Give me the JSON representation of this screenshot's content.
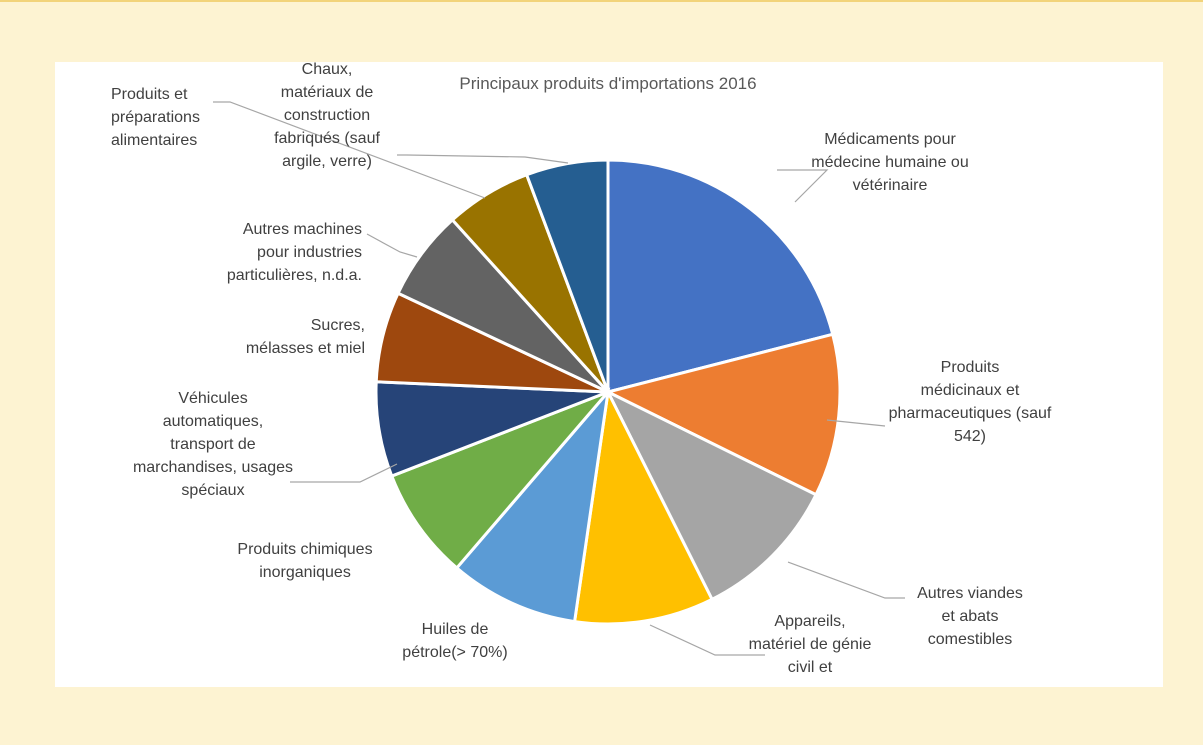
{
  "chart_data": {
    "type": "pie",
    "title": "Principaux produits d'importations 2016",
    "start_angle_deg": 0,
    "direction": "clockwise",
    "slices": [
      {
        "label": "Médicaments pour médecine humaine ou vétérinaire",
        "value": 21.0,
        "color": "#4472c4"
      },
      {
        "label": "Produits médicinaux et pharmaceutiques (sauf 542)",
        "value": 11.3,
        "color": "#ed7d31"
      },
      {
        "label": "Autres viandes et abats comestibles",
        "value": 10.3,
        "color": "#a5a5a5"
      },
      {
        "label": "Appareils, matériel de génie civil et",
        "value": 9.7,
        "color": "#ffc000"
      },
      {
        "label": "Huiles de pétrole(> 70%)",
        "value": 9.0,
        "color": "#5b9bd5"
      },
      {
        "label": "Produits chimiques inorganiques",
        "value": 7.8,
        "color": "#70ad47"
      },
      {
        "label": "Véhicules automatiques, transport de marchandises, usages spéciaux",
        "value": 6.6,
        "color": "#264478"
      },
      {
        "label": "Sucres, mélasses et miel",
        "value": 6.3,
        "color": "#9e480e"
      },
      {
        "label": "Autres machines pour industries particulières, n.d.a.",
        "value": 6.3,
        "color": "#636363"
      },
      {
        "label": "Produits et préparations alimentaires",
        "value": 6.0,
        "color": "#997300"
      },
      {
        "label": "Chaux, matériaux de construction fabriqués (sauf argile, verre)",
        "value": 5.7,
        "color": "#255e91"
      }
    ]
  },
  "labels_text": [
    [
      "Médicaments pour",
      "médecine humaine ou",
      "vétérinaire"
    ],
    [
      "Produits",
      "médicinaux et",
      "pharmaceutiques (sauf",
      "542)"
    ],
    [
      "Autres viandes",
      "et abats",
      "comestibles"
    ],
    [
      "Appareils,",
      "matériel de génie",
      "civil et"
    ],
    [
      "Huiles de",
      "pétrole(> 70%)"
    ],
    [
      "Produits chimiques",
      "inorganiques"
    ],
    [
      "Véhicules",
      "automatiques,",
      "transport de",
      "marchandises, usages",
      "spéciaux"
    ],
    [
      "Sucres,",
      "mélasses et miel"
    ],
    [
      "Autres machines",
      "pour industries",
      "particulières, n.d.a."
    ],
    [
      "Produits et",
      "préparations",
      "alimentaires"
    ],
    [
      "Chaux,",
      "matériaux de",
      "construction",
      "fabriqués (sauf",
      "argile, verre)"
    ]
  ]
}
